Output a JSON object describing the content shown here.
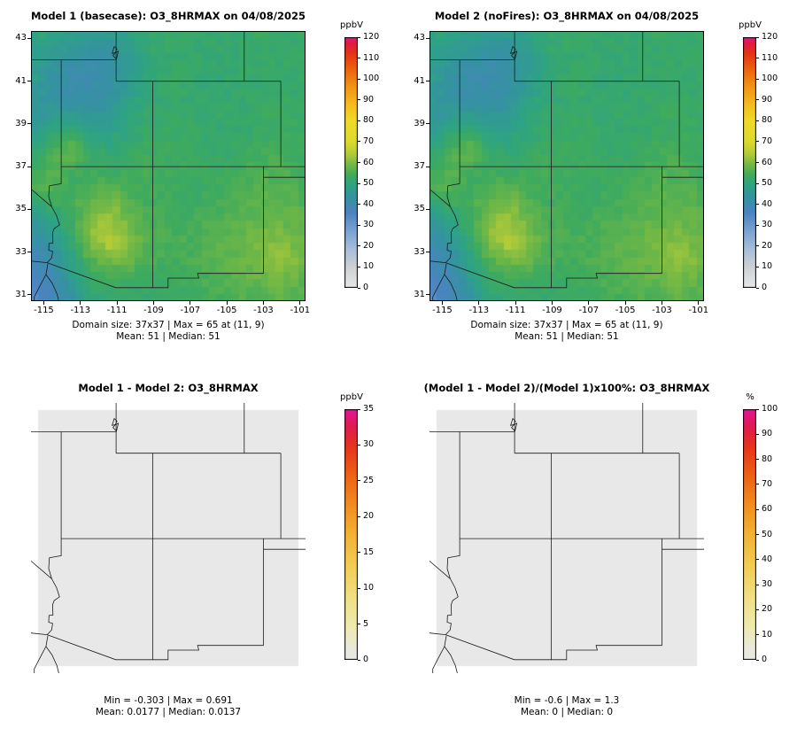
{
  "chart_data": {
    "type": "heatmap",
    "map_extent": {
      "lon": [
        -115.7,
        -100.7
      ],
      "lat": [
        30.7,
        43.35
      ]
    },
    "grid_size": "37x37",
    "panels": [
      {
        "title": "Model 1 (basecase): O3_8HRMAX on 04/08/2025",
        "colorbar_label": "ppbV",
        "scale": "o3",
        "zlim": [
          0,
          120
        ],
        "cb_ticks": [
          0,
          10,
          20,
          30,
          40,
          50,
          60,
          70,
          80,
          90,
          100,
          110,
          120
        ],
        "x_ticks": [
          -115,
          -113,
          -111,
          -109,
          -107,
          -105,
          -103,
          -101
        ],
        "y_ticks": [
          31,
          33,
          35,
          37,
          39,
          41,
          43
        ],
        "show_axes": true,
        "grid_ref": "o3_values",
        "stats": [
          "Domain size: 37x37 | Max = 65 at (11, 9)",
          "Mean: 51 |  Median: 51"
        ]
      },
      {
        "title": "Model 2 (noFires): O3_8HRMAX on 04/08/2025",
        "colorbar_label": "ppbV",
        "scale": "o3",
        "zlim": [
          0,
          120
        ],
        "cb_ticks": [
          0,
          10,
          20,
          30,
          40,
          50,
          60,
          70,
          80,
          90,
          100,
          110,
          120
        ],
        "x_ticks": [
          -115,
          -113,
          -111,
          -109,
          -107,
          -105,
          -103,
          -101
        ],
        "y_ticks": [
          31,
          33,
          35,
          37,
          39,
          41,
          43
        ],
        "show_axes": true,
        "grid_ref": "o3_values",
        "stats": [
          "Domain size: 37x37 | Max = 65 at (11, 9)",
          "Mean: 51 |  Median: 51"
        ]
      },
      {
        "title": "Model 1 - Model 2: O3_8HRMAX",
        "colorbar_label": "ppbV",
        "scale": "warm",
        "zlim": [
          0,
          35
        ],
        "cb_ticks": [
          0,
          5,
          10,
          15,
          20,
          25,
          30,
          35
        ],
        "show_axes": false,
        "uniform_value": 0.0177,
        "stats": [
          "Min = -0.303 | Max = 0.691",
          "Mean: 0.0177 |  Median: 0.0137"
        ]
      },
      {
        "title": "(Model 1 - Model 2)/(Model 1)x100%: O3_8HRMAX",
        "colorbar_label": "%",
        "scale": "warm",
        "zlim": [
          0,
          100
        ],
        "cb_ticks": [
          0,
          10,
          20,
          30,
          40,
          50,
          60,
          70,
          80,
          90,
          100
        ],
        "show_axes": false,
        "uniform_value": 0,
        "stats": [
          "Min = -0.6 | Max = 1.3",
          "Mean: 0 |  Median: 0"
        ]
      }
    ],
    "o3_values": [
      [
        50,
        49,
        47,
        46,
        46,
        48,
        51,
        52,
        52,
        52,
        52,
        52,
        53,
        52,
        52
      ],
      [
        48,
        46,
        44,
        43,
        43,
        47,
        51,
        52,
        52,
        52,
        51,
        52,
        52,
        53,
        52
      ],
      [
        47,
        44,
        41,
        40,
        42,
        46,
        50,
        52,
        52,
        51,
        51,
        52,
        52,
        52,
        52
      ],
      [
        45,
        43,
        41,
        41,
        43,
        47,
        50,
        52,
        52,
        51,
        51,
        52,
        52,
        52,
        52
      ],
      [
        44,
        45,
        44,
        43,
        45,
        49,
        51,
        52,
        52,
        52,
        52,
        52,
        53,
        53,
        52
      ],
      [
        46,
        49,
        51,
        48,
        48,
        51,
        52,
        53,
        53,
        52,
        52,
        52,
        53,
        53,
        53
      ],
      [
        50,
        55,
        57,
        52,
        50,
        52,
        53,
        53,
        53,
        52,
        52,
        53,
        54,
        54,
        53
      ],
      [
        52,
        56,
        55,
        53,
        52,
        53,
        54,
        54,
        53,
        53,
        53,
        54,
        55,
        55,
        54
      ],
      [
        56,
        57,
        53,
        55,
        56,
        55,
        54,
        54,
        53,
        53,
        54,
        55,
        56,
        56,
        55
      ],
      [
        50,
        53,
        55,
        58,
        60,
        56,
        54,
        54,
        53,
        54,
        55,
        56,
        57,
        57,
        56
      ],
      [
        45,
        49,
        54,
        61,
        63,
        58,
        55,
        54,
        54,
        55,
        56,
        57,
        58,
        58,
        57
      ],
      [
        41,
        45,
        52,
        61,
        65,
        60,
        56,
        55,
        55,
        56,
        57,
        58,
        59,
        61,
        58
      ],
      [
        38,
        42,
        50,
        56,
        59,
        58,
        55,
        54,
        55,
        56,
        57,
        58,
        60,
        62,
        59
      ],
      [
        36,
        40,
        47,
        52,
        54,
        54,
        53,
        53,
        54,
        55,
        56,
        57,
        58,
        59,
        57
      ],
      [
        34,
        38,
        44,
        50,
        52,
        52,
        52,
        52,
        53,
        54,
        55,
        56,
        56,
        57,
        56
      ]
    ],
    "scales": {
      "o3": [
        [
          0,
          "#e8e8e8"
        ],
        [
          10,
          "#cdd1d4"
        ],
        [
          18,
          "#aabfda"
        ],
        [
          27,
          "#7ba4d2"
        ],
        [
          36,
          "#4b84c0"
        ],
        [
          43,
          "#3592a2"
        ],
        [
          49,
          "#2ea383"
        ],
        [
          54,
          "#3fab5c"
        ],
        [
          59,
          "#73b845"
        ],
        [
          64,
          "#b2ca39"
        ],
        [
          70,
          "#dcda2e"
        ],
        [
          80,
          "#f0da28"
        ],
        [
          88,
          "#f4bb1f"
        ],
        [
          97,
          "#f29014"
        ],
        [
          105,
          "#ed610e"
        ],
        [
          112,
          "#e63413"
        ],
        [
          117,
          "#e11b3f"
        ],
        [
          120,
          "#e41587"
        ]
      ],
      "warm": [
        [
          0,
          "#e8e8e8"
        ],
        [
          0.05,
          "#e9e9da"
        ],
        [
          0.13,
          "#eeeab0"
        ],
        [
          0.24,
          "#f1e186"
        ],
        [
          0.37,
          "#f3cd55"
        ],
        [
          0.5,
          "#f4b233"
        ],
        [
          0.62,
          "#f28d1e"
        ],
        [
          0.74,
          "#ee6013"
        ],
        [
          0.85,
          "#e7341b"
        ],
        [
          0.93,
          "#e11b4e"
        ],
        [
          1,
          "#e3149b"
        ]
      ]
    }
  }
}
